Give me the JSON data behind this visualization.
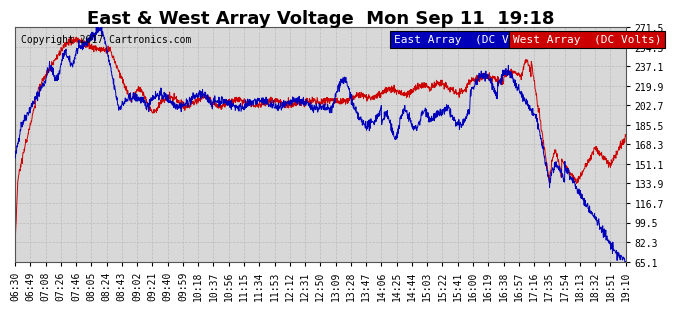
{
  "title": "East & West Array Voltage  Mon Sep 11  19:18",
  "copyright": "Copyright 2017 Cartronics.com",
  "legend_east": "East Array  (DC Volts)",
  "legend_west": "West Array  (DC Volts)",
  "east_color": "#0000bb",
  "west_color": "#cc0000",
  "bg_color": "#ffffff",
  "plot_bg_color": "#d8d8d8",
  "grid_color": "#bbbbbb",
  "ylim": [
    65.1,
    271.5
  ],
  "yticks": [
    65.1,
    82.3,
    99.5,
    116.7,
    133.9,
    151.1,
    168.3,
    185.5,
    202.7,
    219.9,
    237.1,
    254.3,
    271.5
  ],
  "xtick_labels": [
    "06:30",
    "06:49",
    "07:08",
    "07:26",
    "07:46",
    "08:05",
    "08:24",
    "08:43",
    "09:02",
    "09:21",
    "09:40",
    "09:59",
    "10:18",
    "10:37",
    "10:56",
    "11:15",
    "11:34",
    "11:53",
    "12:12",
    "12:31",
    "12:50",
    "13:09",
    "13:28",
    "13:47",
    "14:06",
    "14:25",
    "14:44",
    "15:03",
    "15:22",
    "15:41",
    "16:00",
    "16:19",
    "16:38",
    "16:57",
    "17:16",
    "17:35",
    "17:54",
    "18:13",
    "18:32",
    "18:51",
    "19:10"
  ],
  "title_fontsize": 13,
  "copyright_fontsize": 7,
  "legend_fontsize": 8,
  "tick_fontsize": 7
}
